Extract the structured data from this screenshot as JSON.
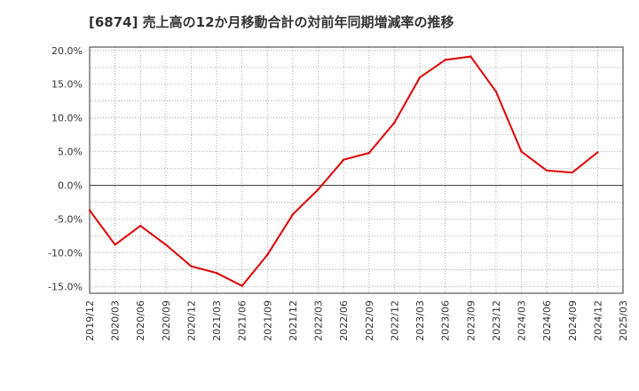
{
  "chart_data": {
    "type": "line",
    "title": "[6874]  売上高の12か月移動合計の対前年同期増減率の推移",
    "xlabel": "",
    "ylabel": "",
    "ylim": [
      -16,
      20.5
    ],
    "yticks": [
      20,
      15,
      10,
      5,
      0,
      -5,
      -10,
      -15
    ],
    "ytick_labels": [
      "20.0%",
      "15.0%",
      "10.0%",
      "5.0%",
      "0.0%",
      "-5.0%",
      "-10.0%",
      "-15.0%"
    ],
    "categories": [
      "2019/12",
      "2020/03",
      "2020/06",
      "2020/09",
      "2020/12",
      "2021/03",
      "2021/06",
      "2021/09",
      "2021/12",
      "2022/03",
      "2022/06",
      "2022/09",
      "2022/12",
      "2023/03",
      "2023/06",
      "2023/09",
      "2023/12",
      "2024/03",
      "2024/06",
      "2024/09",
      "2024/12",
      "2025/03"
    ],
    "grid": true,
    "series": [
      {
        "name": "増減率",
        "color": "#dd0000",
        "values": [
          -3.7,
          -8.8,
          -6.0,
          -8.8,
          -12.0,
          -13.0,
          -14.9,
          -10.3,
          -4.3,
          -0.6,
          3.8,
          4.8,
          9.3,
          16.0,
          18.6,
          19.1,
          13.9,
          5.0,
          2.2,
          1.9,
          4.9,
          null
        ]
      }
    ]
  }
}
